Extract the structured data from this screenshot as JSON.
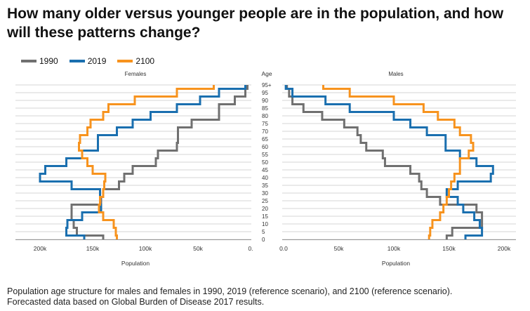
{
  "title": "How many older versus younger people are in the population, and how will these patterns change?",
  "caption_line1": "Population age structure for males and females in 1990, 2019 (reference scenario), and 2100 (reference scenario).",
  "caption_line2": "Forecasted data based on Global Burden of Disease 2017 results.",
  "colors": {
    "1990": "#707070",
    "2019": "#1a6faf",
    "2100": "#f7931e",
    "grid": "#d6d6d6"
  },
  "chart_data": [
    {
      "type": "line",
      "subtitle": "Females",
      "xlabel": "Population",
      "center_label": "Age",
      "reversed_x": true,
      "xlim": [
        0,
        200000
      ],
      "x_ticks": [
        200000,
        150000,
        100000,
        50000,
        0
      ],
      "x_tick_labels": [
        "200k",
        "150k",
        "100k",
        "50k",
        "0."
      ],
      "age_groups": [
        "0",
        "5",
        "10",
        "15",
        "20",
        "25",
        "30",
        "35",
        "40",
        "45",
        "50",
        "55",
        "60",
        "65",
        "70",
        "75",
        "80",
        "85",
        "90",
        "95",
        "95+"
      ],
      "series": [
        {
          "name": "1990",
          "values": [
            140000,
            165000,
            168000,
            170000,
            170000,
            142000,
            140000,
            125000,
            120000,
            112000,
            90000,
            88000,
            70000,
            69000,
            69000,
            56000,
            30000,
            30000,
            15000,
            5000,
            3000
          ]
        },
        {
          "name": "2019",
          "values": [
            158000,
            175000,
            174000,
            160000,
            142000,
            143000,
            143000,
            170000,
            200000,
            195000,
            175000,
            160000,
            145000,
            145000,
            127000,
            112000,
            95000,
            70000,
            48000,
            30000,
            5000
          ]
        },
        {
          "name": "2100",
          "values": [
            127000,
            128000,
            130000,
            140000,
            144000,
            143000,
            140000,
            139000,
            138000,
            150000,
            155000,
            160000,
            163000,
            162000,
            155000,
            152000,
            140000,
            135000,
            110000,
            70000,
            35000
          ]
        }
      ]
    },
    {
      "type": "line",
      "subtitle": "Males",
      "xlabel": "Population",
      "xlim": [
        0,
        200000
      ],
      "x_ticks": [
        0,
        50000,
        100000,
        150000,
        200000
      ],
      "x_tick_labels": [
        "0.0",
        "50k",
        "100k",
        "150k",
        "200k"
      ],
      "age_groups": [
        "0",
        "5",
        "10",
        "15",
        "20",
        "25",
        "30",
        "35",
        "40",
        "45",
        "50",
        "55",
        "60",
        "65",
        "70",
        "75",
        "80",
        "85",
        "90",
        "95",
        "95+"
      ],
      "series": [
        {
          "name": "1990",
          "values": [
            148000,
            153000,
            180000,
            180000,
            175000,
            142000,
            130000,
            125000,
            123000,
            115000,
            92000,
            90000,
            75000,
            70000,
            67000,
            55000,
            35000,
            18000,
            8000,
            5000,
            3000
          ]
        },
        {
          "name": "2019",
          "values": [
            165000,
            180000,
            178000,
            173000,
            163000,
            158000,
            148000,
            158000,
            188000,
            190000,
            175000,
            160000,
            147000,
            147000,
            130000,
            115000,
            100000,
            60000,
            38000,
            8000,
            2000
          ]
        },
        {
          "name": "2100",
          "values": [
            132000,
            133000,
            135000,
            142000,
            145000,
            148000,
            150000,
            152000,
            155000,
            160000,
            160000,
            168000,
            172000,
            170000,
            160000,
            155000,
            140000,
            127000,
            100000,
            60000,
            36000
          ]
        }
      ]
    }
  ]
}
